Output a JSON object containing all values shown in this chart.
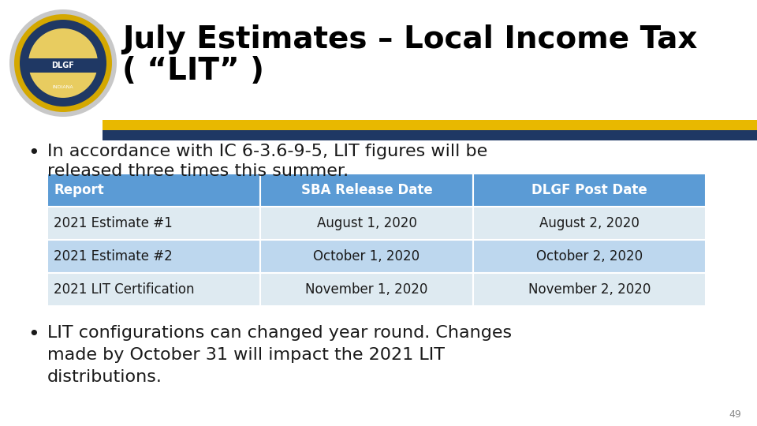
{
  "title_line1": "July Estimates – Local Income Tax",
  "title_line2": "( “LIT” )",
  "bullet1_line1": "In accordance with IC 6-3.6-9-5, LIT figures will be",
  "bullet1_line2": "released three times this summer.",
  "bullet2_line1": "LIT configurations can changed year round. Changes",
  "bullet2_line2": "made by October 31 will impact the 2021 LIT",
  "bullet2_line3": "distributions.",
  "table_headers": [
    "Report",
    "SBA Release Date",
    "DLGF Post Date"
  ],
  "table_rows": [
    [
      "2021 Estimate #1",
      "August 1, 2020",
      "August 2, 2020"
    ],
    [
      "2021 Estimate #2",
      "October 1, 2020",
      "October 2, 2020"
    ],
    [
      "2021 LIT Certification",
      "November 1, 2020",
      "November 2, 2020"
    ]
  ],
  "header_bg": "#5B9BD5",
  "row_bg_light": "#DEEAF1",
  "row_bg_mid": "#BDD7EE",
  "header_text_color": "#FFFFFF",
  "row_text_color": "#1A1A1A",
  "title_color": "#000000",
  "bullet_color": "#1A1A1A",
  "bg_color": "#FFFFFF",
  "stripe_gold": "#E8B800",
  "stripe_blue": "#1F3864",
  "page_number": "49"
}
